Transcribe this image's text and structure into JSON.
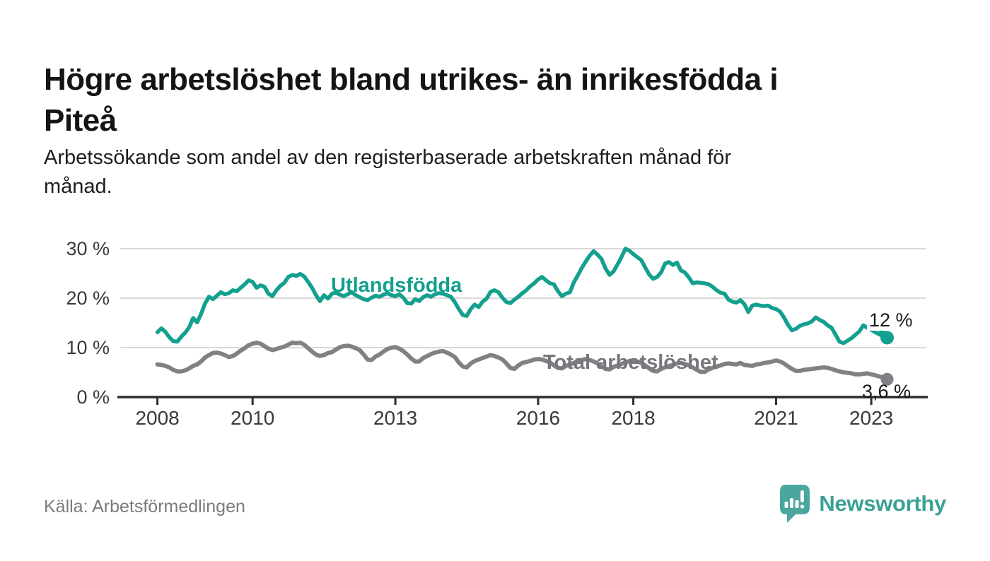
{
  "header": {
    "title": "Högre arbetslöshet bland utrikes- än inrikesfödda i Piteå",
    "title_lines": [
      "Högre arbetslöshet bland utrikes- än inrikesfödda i",
      "Piteå"
    ],
    "subtitle": "Arbetssökande som andel av den registerbaserade arbetskraften månad för månad.",
    "subtitle_lines": [
      "Arbetssökande som andel av den registerbaserade arbetskraften månad för",
      "månad."
    ]
  },
  "footer": {
    "source": "Källa: Arbetsförmedlingen",
    "brand": "Newsworthy",
    "logo_icon": "speech-bubble-bar-chart-icon"
  },
  "colors": {
    "series_foreign": "#13a08e",
    "series_total": "#808184",
    "axis": "#2e2e2e",
    "grid": "#d9d9d9",
    "tick_label": "#3a3a3a",
    "brand_teal": "#4aa69e",
    "background": "#ffffff"
  },
  "chart_data": {
    "type": "line",
    "title": "Högre arbetslöshet bland utrikes- än inrikesfödda i Piteå",
    "subtitle": "Arbetssökande som andel av den registerbaserade arbetskraften månad för månad.",
    "source": "Källa: Arbetsförmedlingen",
    "frequency": "monthly",
    "x_start": "2008-01",
    "x_end": "2023-05",
    "grid": "horizontal",
    "legend": "inline-labels",
    "ylim": [
      0,
      32
    ],
    "y_ticks": [
      {
        "value": 0,
        "label": "0 %"
      },
      {
        "value": 10,
        "label": "10 %"
      },
      {
        "value": 20,
        "label": "20 %"
      },
      {
        "value": 30,
        "label": "30 %"
      }
    ],
    "x_ticks": [
      {
        "value": 2008,
        "label": "2008"
      },
      {
        "value": 2010,
        "label": "2010"
      },
      {
        "value": 2013,
        "label": "2013"
      },
      {
        "value": 2016,
        "label": "2016"
      },
      {
        "value": 2018,
        "label": "2018"
      },
      {
        "value": 2021,
        "label": "2021"
      },
      {
        "value": 2023,
        "label": "2023"
      }
    ],
    "series": [
      {
        "name": "Utlandsfödda",
        "color": "#13a08e",
        "end_label": "12 %",
        "end_value": 12.0,
        "end_marker": "dot-with-tail",
        "values": [
          13.1,
          13.9,
          13.2,
          12.1,
          11.3,
          11.2,
          12.2,
          13.0,
          14.1,
          16.0,
          15.1,
          16.8,
          18.9,
          20.3,
          19.8,
          20.5,
          21.2,
          20.8,
          21.0,
          21.6,
          21.4,
          22.1,
          22.8,
          23.6,
          23.3,
          22.1,
          22.6,
          22.3,
          20.9,
          20.4,
          21.6,
          22.5,
          23.1,
          24.3,
          24.7,
          24.5,
          24.9,
          24.4,
          23.3,
          22.1,
          20.6,
          19.4,
          20.6,
          19.9,
          20.9,
          21.1,
          20.7,
          20.4,
          20.8,
          21.2,
          20.6,
          20.2,
          19.8,
          19.6,
          20.1,
          20.5,
          20.3,
          20.7,
          21.0,
          20.6,
          20.4,
          20.8,
          20.1,
          19.0,
          18.9,
          19.8,
          19.4,
          20.2,
          20.6,
          20.3,
          20.8,
          21.0,
          20.9,
          20.6,
          20.3,
          19.2,
          17.8,
          16.6,
          16.4,
          17.8,
          18.7,
          18.2,
          19.3,
          19.9,
          21.3,
          21.6,
          21.2,
          20.1,
          19.2,
          19.0,
          19.7,
          20.3,
          21.0,
          21.6,
          22.4,
          23.0,
          23.8,
          24.3,
          23.6,
          23.0,
          22.8,
          21.4,
          20.4,
          20.9,
          21.2,
          23.2,
          24.6,
          26.1,
          27.4,
          28.6,
          29.5,
          28.8,
          27.9,
          26.0,
          24.7,
          25.4,
          26.8,
          28.3,
          30.0,
          29.6,
          28.9,
          28.3,
          27.7,
          26.2,
          24.8,
          23.9,
          24.3,
          25.2,
          27.0,
          27.3,
          26.7,
          27.2,
          25.6,
          25.2,
          24.2,
          23.0,
          23.2,
          23.1,
          23.0,
          22.8,
          22.3,
          21.6,
          21.1,
          20.9,
          19.7,
          19.3,
          19.1,
          19.6,
          18.8,
          17.2,
          18.5,
          18.7,
          18.5,
          18.4,
          18.5,
          18.0,
          17.8,
          17.3,
          16.1,
          14.6,
          13.5,
          13.8,
          14.4,
          14.7,
          14.9,
          15.3,
          16.1,
          15.6,
          15.2,
          14.5,
          14.0,
          12.6,
          11.2,
          10.9,
          11.4,
          11.9,
          12.6,
          13.3,
          14.5,
          14.0,
          13.6,
          13.1,
          12.7,
          12.3,
          12.0
        ]
      },
      {
        "name": "Total arbetslöshet",
        "color": "#808184",
        "end_label": "3,6 %",
        "end_value": 3.6,
        "end_marker": "dot",
        "values": [
          6.6,
          6.5,
          6.3,
          6.0,
          5.5,
          5.2,
          5.2,
          5.4,
          5.8,
          6.3,
          6.6,
          7.2,
          8.0,
          8.5,
          8.9,
          9.0,
          8.8,
          8.5,
          8.1,
          8.3,
          8.8,
          9.4,
          9.9,
          10.5,
          10.8,
          11.0,
          10.8,
          10.3,
          9.8,
          9.5,
          9.7,
          10.0,
          10.2,
          10.6,
          11.0,
          10.9,
          11.0,
          10.6,
          9.9,
          9.2,
          8.6,
          8.3,
          8.5,
          8.9,
          9.1,
          9.6,
          10.1,
          10.3,
          10.4,
          10.2,
          9.9,
          9.5,
          8.6,
          7.6,
          7.5,
          8.2,
          8.6,
          9.2,
          9.7,
          10.0,
          10.1,
          9.8,
          9.3,
          8.6,
          7.8,
          7.2,
          7.2,
          7.9,
          8.3,
          8.7,
          9.0,
          9.2,
          9.3,
          9.0,
          8.6,
          8.1,
          7.0,
          6.2,
          6.0,
          6.8,
          7.3,
          7.6,
          7.9,
          8.2,
          8.5,
          8.3,
          8.0,
          7.6,
          6.8,
          5.9,
          5.7,
          6.4,
          6.9,
          7.1,
          7.3,
          7.6,
          7.7,
          7.6,
          7.3,
          7.0,
          6.4,
          5.9,
          5.8,
          6.3,
          6.6,
          6.9,
          7.2,
          7.5,
          7.7,
          7.5,
          7.2,
          6.8,
          6.2,
          5.7,
          5.6,
          6.1,
          6.4,
          6.7,
          7.0,
          7.3,
          7.4,
          7.2,
          6.9,
          6.4,
          5.8,
          5.3,
          5.2,
          5.7,
          6.0,
          6.3,
          6.5,
          6.8,
          6.9,
          6.7,
          6.4,
          6.0,
          5.5,
          5.1,
          5.1,
          5.6,
          5.9,
          6.2,
          6.4,
          6.7,
          6.8,
          6.7,
          6.6,
          6.9,
          6.5,
          6.4,
          6.3,
          6.6,
          6.7,
          6.9,
          7.0,
          7.2,
          7.4,
          7.2,
          6.8,
          6.2,
          5.7,
          5.3,
          5.3,
          5.5,
          5.6,
          5.7,
          5.8,
          5.9,
          6.0,
          5.9,
          5.7,
          5.4,
          5.2,
          5.0,
          4.9,
          4.8,
          4.6,
          4.6,
          4.7,
          4.8,
          4.6,
          4.4,
          4.2,
          3.9,
          3.6
        ]
      }
    ]
  }
}
